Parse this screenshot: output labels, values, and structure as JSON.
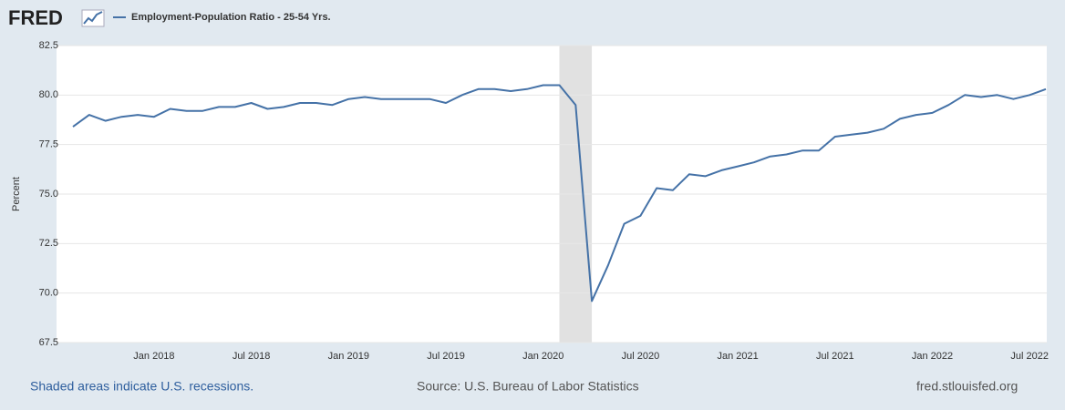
{
  "logo": "FRED",
  "footer": {
    "note": "Shaded areas indicate U.S. recessions.",
    "source": "Source: U.S. Bureau of Labor Statistics",
    "site": "fred.stlouisfed.org"
  },
  "chart_data": {
    "type": "line",
    "y_label": "Percent",
    "categories": [
      null,
      null,
      null,
      null,
      null,
      "Jan 2018",
      null,
      null,
      null,
      null,
      null,
      "Jul 2018",
      null,
      null,
      null,
      null,
      null,
      "Jan 2019",
      null,
      null,
      null,
      null,
      null,
      "Jul 2019",
      null,
      null,
      null,
      null,
      null,
      "Jan 2020",
      null,
      null,
      null,
      null,
      null,
      "Jul 2020",
      null,
      null,
      null,
      null,
      null,
      "Jan 2021",
      null,
      null,
      null,
      null,
      null,
      "Jul 2021",
      null,
      null,
      null,
      null,
      null,
      "Jan 2022",
      null,
      null,
      null,
      null,
      null,
      "Jul 2022",
      null
    ],
    "recession": [
      false,
      false,
      false,
      false,
      false,
      false,
      false,
      false,
      false,
      false,
      false,
      false,
      false,
      false,
      false,
      false,
      false,
      false,
      false,
      false,
      false,
      false,
      false,
      false,
      false,
      false,
      false,
      false,
      false,
      false,
      true,
      true,
      true,
      false,
      false,
      false,
      false,
      false,
      false,
      false,
      false,
      false,
      false,
      false,
      false,
      false,
      false,
      false,
      false,
      false,
      false,
      false,
      false,
      false,
      false,
      false,
      false,
      false,
      false,
      false,
      false
    ],
    "series": [
      {
        "name": "Employment-Population Ratio - 25-54 Yrs.",
        "color": "#4572a7",
        "values": [
          78.4,
          79.0,
          78.7,
          78.9,
          79.0,
          78.9,
          79.3,
          79.2,
          79.2,
          79.4,
          79.4,
          79.6,
          79.3,
          79.4,
          79.6,
          79.6,
          79.5,
          79.8,
          79.9,
          79.8,
          79.8,
          79.8,
          79.8,
          79.6,
          80.0,
          80.3,
          80.3,
          80.2,
          80.3,
          80.5,
          80.5,
          79.5,
          69.6,
          71.4,
          73.5,
          73.9,
          75.3,
          75.2,
          76.0,
          75.9,
          76.2,
          76.4,
          76.6,
          76.9,
          77.0,
          77.2,
          77.2,
          77.9,
          78.0,
          78.1,
          78.3,
          78.8,
          79.0,
          79.1,
          79.5,
          80.0,
          79.9,
          80.0,
          79.8,
          80.0,
          80.3
        ]
      }
    ],
    "ylim": [
      67.5,
      82.5
    ],
    "yticks": [
      67.5,
      {
        "value": 70,
        "label": "70.0"
      },
      72.5,
      {
        "value": 75,
        "label": "75.0"
      },
      77.5,
      {
        "value": 80,
        "label": "80.0"
      },
      82.5
    ],
    "grid": true
  }
}
